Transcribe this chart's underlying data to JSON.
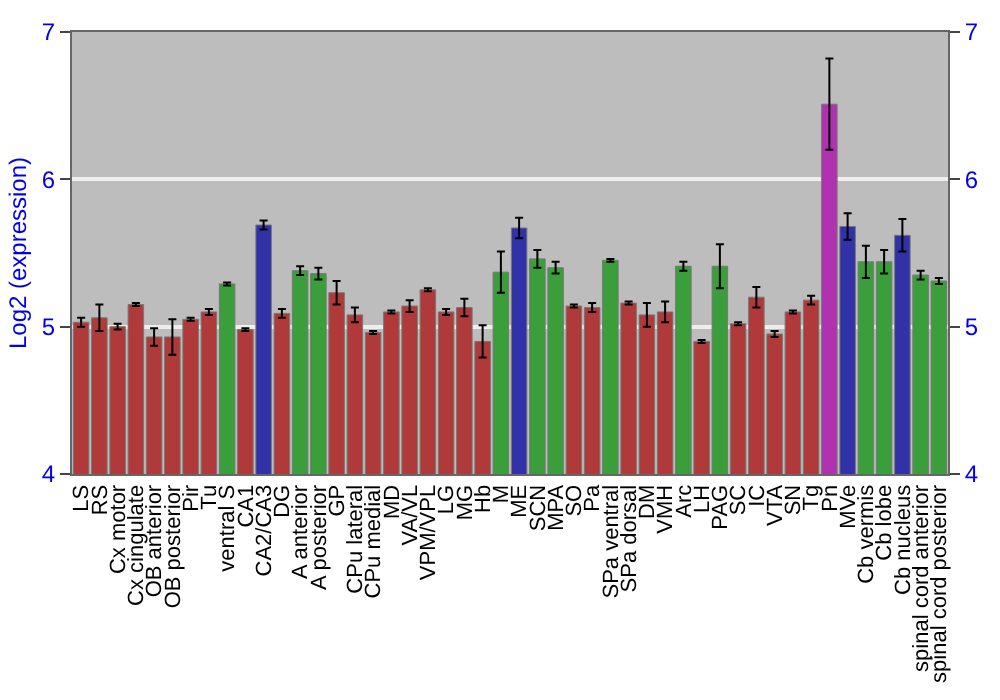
{
  "chart_data": {
    "type": "bar",
    "ylabel": "Log2 (expression)",
    "categories": [
      "LS",
      "RS",
      "Cx motor",
      "Cx cingulate",
      "OB anterior",
      "OB posterior",
      "Pir",
      "Tu",
      "ventral S",
      "CA1",
      "CA2/CA3",
      "DG",
      "A anterior",
      "A posterior",
      "GP",
      "CPu lateral",
      "CPu medial",
      "MD",
      "VA/VL",
      "VPM/VPL",
      "LG",
      "MG",
      "Hb",
      "M",
      "ME",
      "SCN",
      "MPA",
      "SO",
      "Pa",
      "SPa ventral",
      "SPa dorsal",
      "DM",
      "VMH",
      "Arc",
      "LH",
      "PAG",
      "SC",
      "IC",
      "VTA",
      "SN",
      "Tg",
      "Pn",
      "MVe",
      "Cb vermis",
      "Cb lobe",
      "Cb nucleus",
      "spinal cord anterior",
      "spinal cord posterior"
    ],
    "values": [
      5.03,
      5.06,
      5.0,
      5.15,
      4.93,
      4.93,
      5.05,
      5.1,
      5.29,
      4.98,
      5.69,
      5.09,
      5.38,
      5.36,
      5.23,
      5.08,
      4.96,
      5.1,
      5.14,
      5.25,
      5.1,
      5.13,
      4.9,
      5.37,
      5.67,
      5.46,
      5.4,
      5.14,
      5.13,
      5.45,
      5.16,
      5.08,
      5.1,
      5.41,
      4.9,
      5.41,
      5.02,
      5.2,
      4.95,
      5.1,
      5.18,
      6.51,
      5.68,
      5.44,
      5.44,
      5.62,
      5.35,
      5.31
    ],
    "errors": [
      0.03,
      0.09,
      0.02,
      0.01,
      0.06,
      0.12,
      0.01,
      0.02,
      0.01,
      0.01,
      0.03,
      0.03,
      0.03,
      0.04,
      0.08,
      0.05,
      0.01,
      0.01,
      0.04,
      0.01,
      0.02,
      0.06,
      0.11,
      0.14,
      0.07,
      0.06,
      0.04,
      0.01,
      0.03,
      0.01,
      0.01,
      0.08,
      0.07,
      0.03,
      0.01,
      0.15,
      0.01,
      0.07,
      0.02,
      0.01,
      0.03,
      0.31,
      0.09,
      0.11,
      0.08,
      0.11,
      0.03,
      0.02
    ],
    "colors": [
      "#b03a3a",
      "#b03a3a",
      "#b03a3a",
      "#b03a3a",
      "#b03a3a",
      "#b03a3a",
      "#b03a3a",
      "#b03a3a",
      "#3a9e3a",
      "#b03a3a",
      "#3232a8",
      "#b03a3a",
      "#3a9e3a",
      "#3a9e3a",
      "#b03a3a",
      "#b03a3a",
      "#b03a3a",
      "#b03a3a",
      "#b03a3a",
      "#b03a3a",
      "#b03a3a",
      "#b03a3a",
      "#b03a3a",
      "#3a9e3a",
      "#3232a8",
      "#3a9e3a",
      "#3a9e3a",
      "#b03a3a",
      "#b03a3a",
      "#3a9e3a",
      "#b03a3a",
      "#b03a3a",
      "#b03a3a",
      "#3a9e3a",
      "#b03a3a",
      "#3a9e3a",
      "#b03a3a",
      "#b03a3a",
      "#b03a3a",
      "#b03a3a",
      "#b03a3a",
      "#b032b0",
      "#3232a8",
      "#3a9e3a",
      "#3a9e3a",
      "#3232a8",
      "#3a9e3a",
      "#3a9e3a"
    ],
    "ylim": [
      4,
      7
    ],
    "yticks": [
      4,
      5,
      6,
      7
    ],
    "y2lim": [
      4,
      7
    ],
    "y2ticks": [
      4,
      5,
      6,
      7
    ],
    "grid": "y"
  }
}
